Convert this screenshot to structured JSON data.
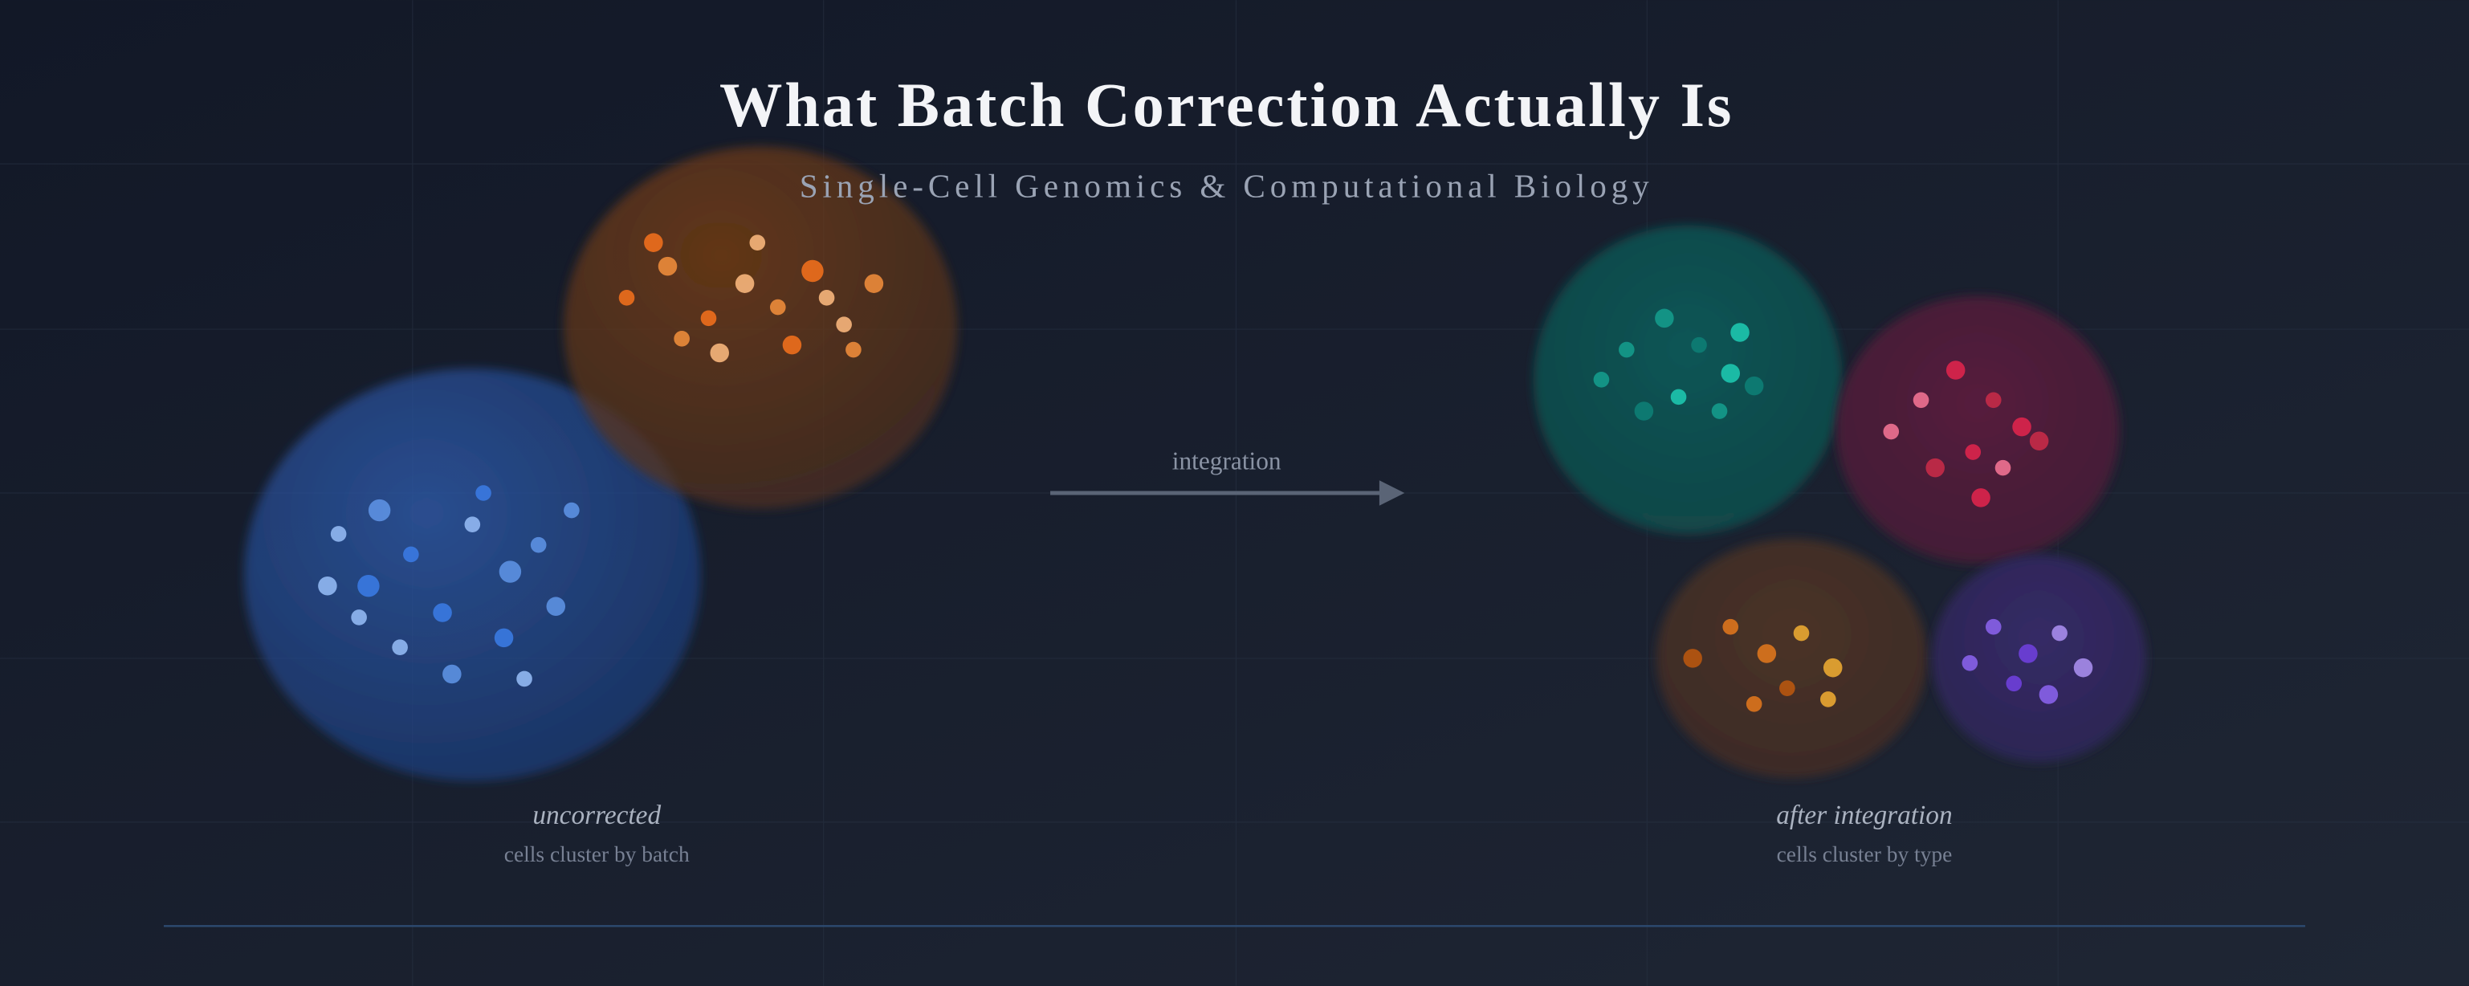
{
  "header": {
    "title": "What Batch Correction Actually Is",
    "subtitle": "Single-Cell Genomics & Computational Biology"
  },
  "arrow": {
    "label": "integration"
  },
  "panels": [
    {
      "label": "uncorrected",
      "caption": "cells cluster by batch"
    },
    {
      "label": "after integration",
      "caption": "cells cluster by type"
    }
  ]
}
